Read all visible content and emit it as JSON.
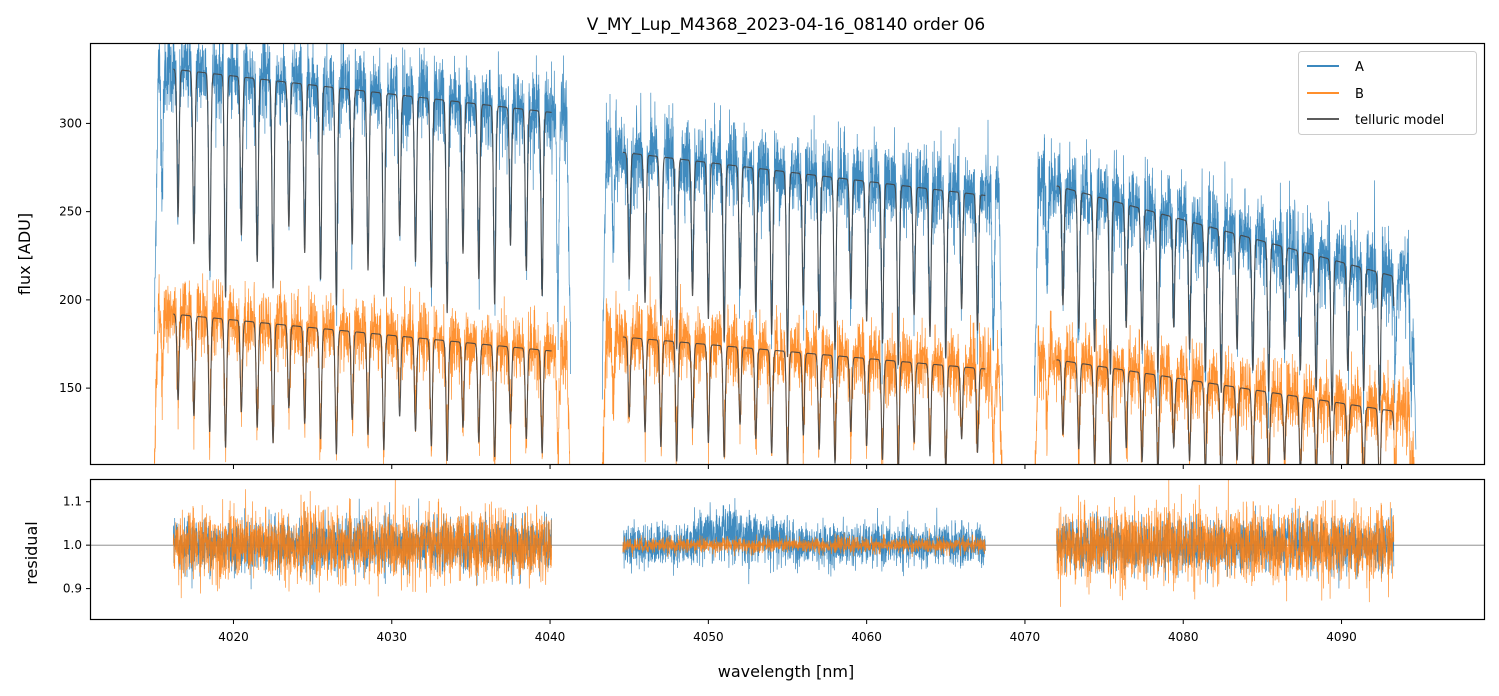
{
  "chart_data": {
    "type": "line",
    "title": "V_MY_Lup_M4368_2023-04-16_08140  order 06",
    "xlabel": "wavelength [nm]",
    "xlim": [
      4011,
      4099
    ],
    "xticks": [
      4020,
      4030,
      4040,
      4050,
      4060,
      4070,
      4080,
      4090
    ],
    "xtick_labels": [
      "4020",
      "4030",
      "4040",
      "4050",
      "4060",
      "4070",
      "4080",
      "4090"
    ],
    "colors": {
      "A": "#1f77b4",
      "B": "#ff7f0e",
      "model": "#444444",
      "residual_line": "#808080"
    },
    "top_panel": {
      "ylabel": "flux [ADU]",
      "ylim": [
        107,
        345
      ],
      "yticks": [
        150,
        200,
        250,
        300
      ],
      "ytick_labels": [
        "150",
        "200",
        "250",
        "300"
      ],
      "legend": {
        "position": "upper right",
        "entries": [
          "A",
          "B",
          "telluric model"
        ]
      },
      "segments": [
        {
          "x_start": 4015.0,
          "x_end": 4041.3,
          "model_x_start": 4016.2,
          "model_x_end": 4040.1,
          "A_start": 332,
          "A_end": 305,
          "B_start": 193,
          "B_end": 170,
          "line_spacing": 1.0,
          "line_offset": 4016.5
        },
        {
          "x_start": 4043.3,
          "x_end": 4068.6,
          "model_x_start": 4044.6,
          "model_x_end": 4067.5,
          "A_start": 285,
          "A_end": 258,
          "B_start": 180,
          "B_end": 160,
          "line_spacing": 1.0,
          "line_offset": 4045.0
        },
        {
          "x_start": 4070.6,
          "x_end": 4094.7,
          "model_x_start": 4072.0,
          "model_x_end": 4093.3,
          "A_start": 268,
          "A_end": 210,
          "B_start": 168,
          "B_end": 135,
          "line_spacing": 1.0,
          "line_offset": 4072.4
        }
      ],
      "series": [
        {
          "name": "A",
          "continuum_level": "upper",
          "noise_amplitude": 12
        },
        {
          "name": "B",
          "continuum_level": "lower",
          "noise_amplitude": 10
        },
        {
          "name": "telluric model",
          "continuum_level": "both"
        }
      ]
    },
    "bottom_panel": {
      "ylabel": "residual",
      "ylim": [
        0.83,
        1.15
      ],
      "yticks": [
        0.9,
        1.0,
        1.1
      ],
      "ytick_labels": [
        "0.9",
        "1.0",
        "1.1"
      ],
      "reference_line": 1.0,
      "segments": [
        {
          "x_start": 4016.2,
          "x_end": 4040.1,
          "A_scatter": 0.05,
          "B_scatter": 0.065
        },
        {
          "x_start": 4044.6,
          "x_end": 4067.5,
          "A_scatter": 0.04,
          "B_scatter": 0.015
        },
        {
          "x_start": 4072.0,
          "x_end": 4093.3,
          "A_scatter": 0.05,
          "B_scatter": 0.07
        }
      ]
    }
  }
}
